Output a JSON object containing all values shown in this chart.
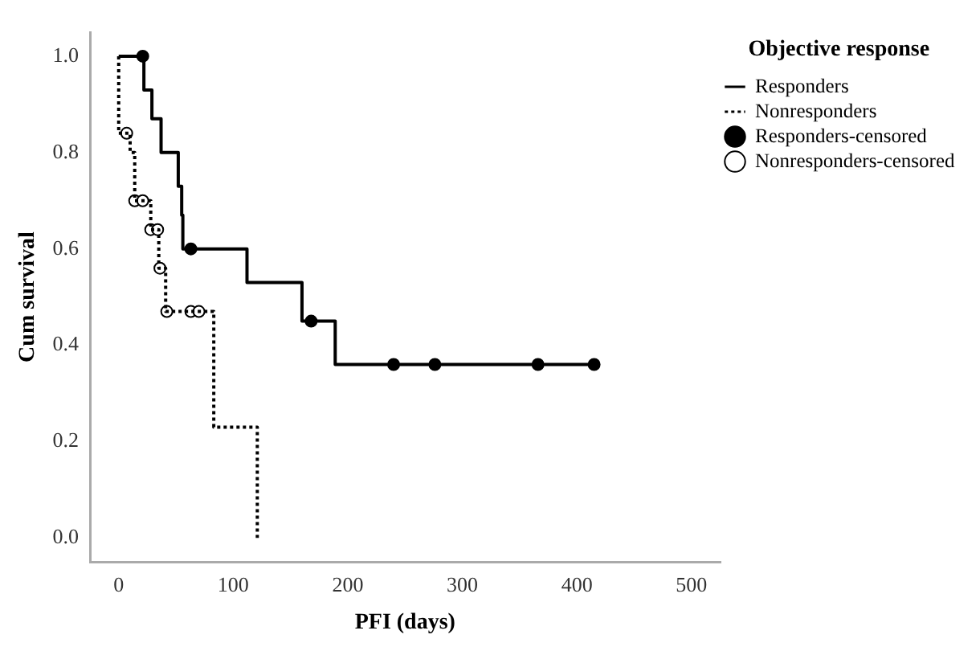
{
  "chart_data": {
    "type": "step",
    "xlabel": "PFI (days)",
    "ylabel": "Cum survival",
    "legend_title": "Objective response",
    "legend": "top right",
    "grid": false,
    "xlim": [
      -25,
      525
    ],
    "xticks": [
      0,
      100,
      200,
      300,
      400,
      500
    ],
    "ylim": [
      -0.05,
      1.05
    ],
    "yticks": [
      {
        "value": 0,
        "label": "0.0"
      },
      {
        "value": 0.2,
        "label": "0.2"
      },
      {
        "value": 0.4,
        "label": "0.4"
      },
      {
        "value": 0.6,
        "label": "0.6"
      },
      {
        "value": 0.8,
        "label": "0.8"
      },
      {
        "value": 1,
        "label": "1.0"
      }
    ],
    "series": [
      {
        "name": "Responders",
        "type": "step",
        "color": "#000000",
        "line_style": "solid",
        "marker": "none",
        "x": [
          0,
          22,
          29,
          37,
          52,
          55,
          56,
          112,
          160,
          189,
          415
        ],
        "values": [
          1,
          0.93,
          0.87,
          0.8,
          0.73,
          0.67,
          0.6,
          0.53,
          0.45,
          0.36,
          0.36
        ]
      },
      {
        "name": "Nonresponders",
        "type": "step",
        "color": "#000000",
        "line_style": "dotted",
        "marker": "none",
        "x": [
          0,
          0,
          10,
          14,
          28,
          35,
          41,
          83,
          121
        ],
        "values": [
          1,
          0.84,
          0.8,
          0.7,
          0.64,
          0.56,
          0.47,
          0.23,
          0
        ]
      },
      {
        "name": "Responders-censored",
        "type": "scatter",
        "color": "#000000",
        "marker": "circle",
        "x": [
          21,
          63,
          168,
          240,
          276,
          366,
          415
        ],
        "values": [
          1,
          0.6,
          0.45,
          0.36,
          0.36,
          0.36,
          0.36
        ]
      },
      {
        "name": "Nonresponders-censored",
        "type": "scatter",
        "color": "#ffffff",
        "marker": "circle",
        "x": [
          7,
          14,
          21,
          28,
          34,
          36,
          42,
          63,
          70
        ],
        "values": [
          0.84,
          0.7,
          0.7,
          0.64,
          0.64,
          0.56,
          0.47,
          0.47,
          0.47
        ]
      }
    ]
  }
}
